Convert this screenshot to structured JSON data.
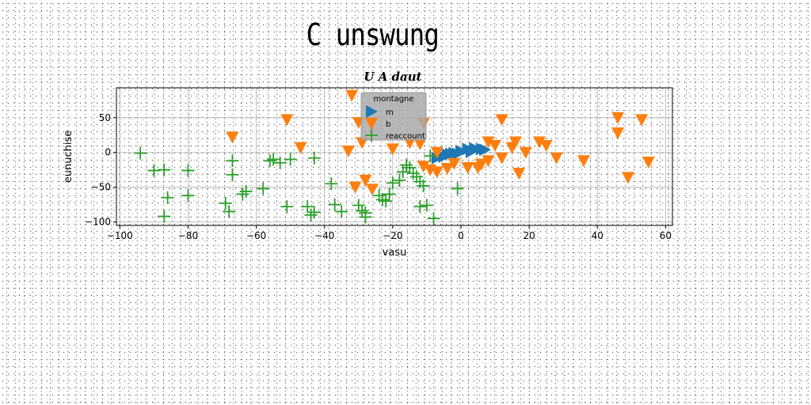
{
  "suptitle": "C unswung",
  "chart_data": {
    "type": "scatter",
    "title": "U A daut",
    "xlabel": "vasu",
    "ylabel": "eunuchise",
    "xlim": [
      -101,
      62
    ],
    "ylim": [
      -105,
      93
    ],
    "xticks": [
      -100,
      -80,
      -60,
      -40,
      -20,
      0,
      20,
      40,
      60
    ],
    "yticks": [
      -100,
      -50,
      0,
      50
    ],
    "grid": true,
    "legend": {
      "title": "montagne",
      "placement": "upper center"
    },
    "series": [
      {
        "name": "m",
        "marker": "triangle-right",
        "color": "#1f77b4",
        "points": [
          [
            -7,
            -8
          ],
          [
            -6,
            -5
          ],
          [
            -4,
            -3
          ],
          [
            -3,
            -2
          ],
          [
            -2,
            -1
          ],
          [
            0,
            2
          ],
          [
            2,
            5
          ],
          [
            4,
            6
          ],
          [
            6,
            5
          ],
          [
            7,
            4
          ],
          [
            3,
            1
          ],
          [
            -1,
            -2
          ],
          [
            -5,
            -6
          ]
        ]
      },
      {
        "name": "b",
        "marker": "triangle-down",
        "color": "#ff7f0e",
        "points": [
          [
            -32,
            82
          ],
          [
            -30,
            43
          ],
          [
            -51,
            47
          ],
          [
            -67,
            22
          ],
          [
            -47,
            7
          ],
          [
            -33,
            2
          ],
          [
            -29,
            14
          ],
          [
            -28,
            -40
          ],
          [
            -31,
            -50
          ],
          [
            -26,
            -53
          ],
          [
            -20,
            5
          ],
          [
            -15,
            14
          ],
          [
            -11,
            42
          ],
          [
            -12,
            12
          ],
          [
            -11,
            -20
          ],
          [
            -9,
            -25
          ],
          [
            -7,
            0
          ],
          [
            -7,
            -28
          ],
          [
            -4,
            -23
          ],
          [
            -2,
            -16
          ],
          [
            2,
            -22
          ],
          [
            5,
            -22
          ],
          [
            6,
            -17
          ],
          [
            8,
            -12
          ],
          [
            8,
            15
          ],
          [
            10,
            10
          ],
          [
            12,
            47
          ],
          [
            12,
            -8
          ],
          [
            15,
            7
          ],
          [
            16,
            15
          ],
          [
            17,
            -30
          ],
          [
            19,
            0
          ],
          [
            23,
            15
          ],
          [
            25,
            10
          ],
          [
            28,
            -8
          ],
          [
            36,
            -12
          ],
          [
            46,
            50
          ],
          [
            46,
            28
          ],
          [
            49,
            -36
          ],
          [
            53,
            47
          ],
          [
            55,
            -14
          ]
        ]
      },
      {
        "name": "reaccount",
        "marker": "plus",
        "color": "#2ca02c",
        "points": [
          [
            -94,
            -1
          ],
          [
            -90,
            -26
          ],
          [
            -87,
            -25
          ],
          [
            -80,
            -26
          ],
          [
            -86,
            -65
          ],
          [
            -80,
            -62
          ],
          [
            -87,
            -92
          ],
          [
            -69,
            -73
          ],
          [
            -68,
            -85
          ],
          [
            -67,
            -12
          ],
          [
            -67,
            -32
          ],
          [
            -64,
            -60
          ],
          [
            -63,
            -56
          ],
          [
            -58,
            -52
          ],
          [
            -56,
            -12
          ],
          [
            -55,
            -10
          ],
          [
            -53,
            -15
          ],
          [
            -50,
            -10
          ],
          [
            -51,
            -78
          ],
          [
            -45,
            -78
          ],
          [
            -44,
            -90
          ],
          [
            -43,
            -86
          ],
          [
            -43,
            -8
          ],
          [
            -38,
            -45
          ],
          [
            -37,
            -75
          ],
          [
            -35,
            -85
          ],
          [
            -30,
            -76
          ],
          [
            -29,
            -84
          ],
          [
            -28,
            -93
          ],
          [
            -28,
            -87
          ],
          [
            -24,
            -62
          ],
          [
            -23,
            -68
          ],
          [
            -22,
            -70
          ],
          [
            -21,
            -60
          ],
          [
            -20,
            -44
          ],
          [
            -18,
            -40
          ],
          [
            -17,
            -28
          ],
          [
            -16,
            -18
          ],
          [
            -15,
            -22
          ],
          [
            -14,
            -30
          ],
          [
            -13,
            -35
          ],
          [
            -12,
            -42
          ],
          [
            -12,
            -78
          ],
          [
            -11,
            -48
          ],
          [
            -10,
            -76
          ],
          [
            -9,
            -5
          ],
          [
            -8,
            -95
          ],
          [
            -1,
            -52
          ]
        ]
      }
    ]
  }
}
